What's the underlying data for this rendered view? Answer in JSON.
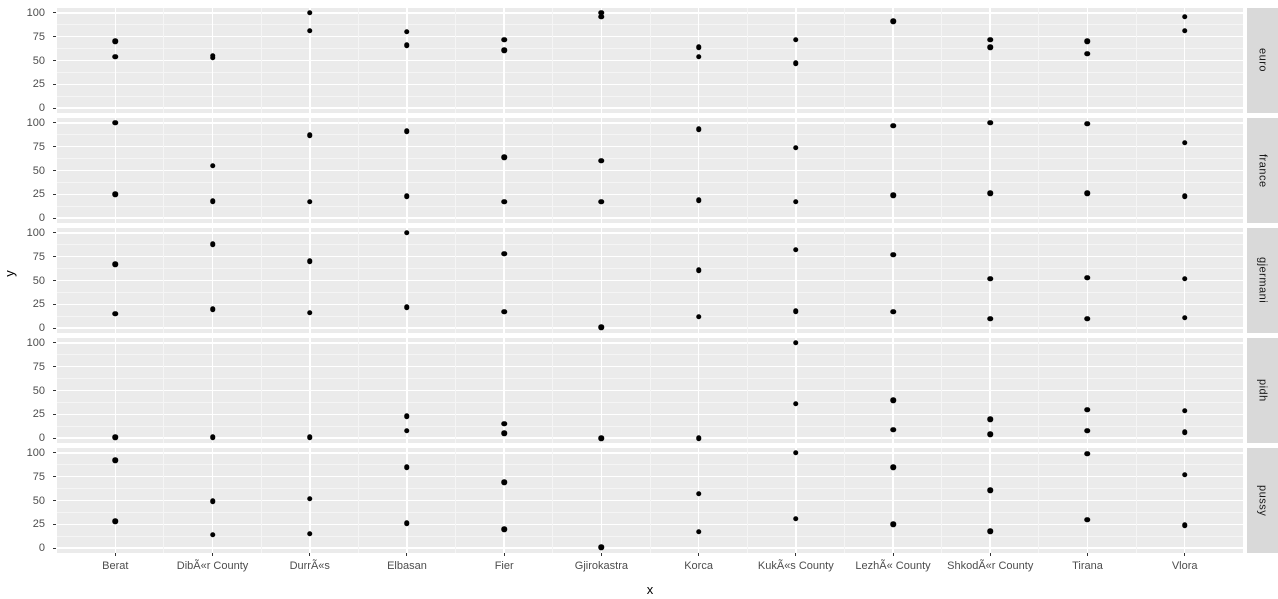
{
  "chart_data": {
    "type": "scatter",
    "title": "",
    "xlabel": "x",
    "ylabel": "y",
    "ylim": [
      0,
      100
    ],
    "yticks": [
      0,
      25,
      50,
      75,
      100
    ],
    "ytick_labels": [
      "0",
      "25",
      "50",
      "75",
      "100"
    ],
    "grid": "on",
    "legend": "none",
    "facet_orientation": "rows",
    "categories": [
      "Berat",
      "DibÃ«r County",
      "DurrÃ«s",
      "Elbasan",
      "Fier",
      "Gjirokastra",
      "Korca",
      "KukÃ«s County",
      "LezhÃ« County",
      "ShkodÃ«r County",
      "Tirana",
      "Vlora"
    ],
    "facets": [
      {
        "label": "euro",
        "values_by_category": [
          [
            70,
            54
          ],
          [
            55,
            53
          ],
          [
            100,
            81
          ],
          [
            80,
            66
          ],
          [
            72,
            61
          ],
          [
            100,
            96
          ],
          [
            64,
            54
          ],
          [
            72,
            47
          ],
          [
            91
          ],
          [
            72,
            64
          ],
          [
            70,
            57
          ],
          [
            96,
            81
          ]
        ]
      },
      {
        "label": "france",
        "values_by_category": [
          [
            100,
            25
          ],
          [
            55,
            18
          ],
          [
            87,
            17
          ],
          [
            91,
            23
          ],
          [
            64,
            17
          ],
          [
            60,
            17
          ],
          [
            93,
            19
          ],
          [
            74,
            17
          ],
          [
            97,
            24
          ],
          [
            100,
            26
          ],
          [
            99,
            26
          ],
          [
            79,
            23
          ]
        ]
      },
      {
        "label": "gjermani",
        "values_by_category": [
          [
            67,
            15
          ],
          [
            88,
            20
          ],
          [
            70,
            16
          ],
          [
            100,
            22
          ],
          [
            78,
            17
          ],
          [
            1
          ],
          [
            61,
            12
          ],
          [
            82,
            18
          ],
          [
            77,
            17
          ],
          [
            52,
            10
          ],
          [
            53,
            10
          ],
          [
            52,
            11
          ]
        ]
      },
      {
        "label": "pidh",
        "values_by_category": [
          [
            1
          ],
          [
            1
          ],
          [
            1
          ],
          [
            23,
            8
          ],
          [
            15,
            5
          ],
          [
            0
          ],
          [
            0
          ],
          [
            100,
            36
          ],
          [
            40,
            9
          ],
          [
            20,
            4
          ],
          [
            30,
            8
          ],
          [
            29,
            6
          ]
        ]
      },
      {
        "label": "pussy",
        "values_by_category": [
          [
            92,
            28
          ],
          [
            49,
            14
          ],
          [
            52,
            15
          ],
          [
            85,
            26
          ],
          [
            69,
            20
          ],
          [
            1
          ],
          [
            57,
            17
          ],
          [
            100,
            31
          ],
          [
            85,
            25
          ],
          [
            61,
            18
          ],
          [
            99,
            30
          ],
          [
            77,
            24
          ]
        ]
      }
    ],
    "colors": {
      "panel_bg": "#ebebeb",
      "strip_bg": "#d9d9d9",
      "point": "#000000",
      "grid_major": "#ffffff",
      "grid_minor": "#f5f5f5",
      "axis_text": "#4d4d4d",
      "strip_text": "#1a1a1a",
      "tick_mark": "#333333",
      "background": "#ffffff"
    }
  }
}
